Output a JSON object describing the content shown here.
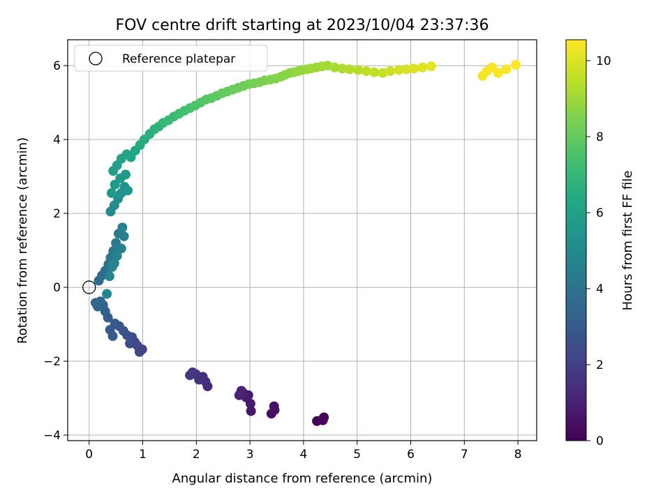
{
  "chart_data": {
    "type": "scatter",
    "title": "FOV centre drift starting at 2023/10/04 23:37:36",
    "xlabel": "Angular distance from reference (arcmin)",
    "ylabel": "Rotation from reference (arcmin)",
    "xlim": [
      -0.4,
      8.35
    ],
    "ylim": [
      -4.15,
      6.7
    ],
    "xticks": [
      "0",
      "1",
      "2",
      "3",
      "4",
      "5",
      "6",
      "7",
      "8"
    ],
    "yticks": [
      "−4",
      "−2",
      "0",
      "2",
      "4",
      "6"
    ],
    "grid": true,
    "legend": {
      "label": "Reference platepar",
      "placement": "top-left"
    },
    "reference_point": {
      "x": 0,
      "y": 0
    },
    "colorbar": {
      "label": "Hours from first FF file",
      "range": [
        0,
        10.55
      ],
      "ticks": [
        "0",
        "2",
        "4",
        "6",
        "8",
        "10"
      ],
      "colormap": "viridis"
    },
    "series": [
      {
        "x": [
          4.25,
          4.35,
          4.38,
          4.36,
          3.4,
          3.46,
          3.45,
          3.02,
          3.01,
          2.97,
          2.93,
          2.87,
          2.84,
          2.8,
          2.21,
          2.17,
          2.12,
          2.05,
          1.99,
          1.93,
          1.88,
          0.99,
          0.94,
          0.9,
          0.85,
          0.8,
          0.76,
          0.71,
          0.64,
          0.56,
          0.48,
          0.44,
          0.39,
          0.35,
          0.3,
          0.26,
          0.21,
          0.16,
          0.12,
          0.18,
          0.24,
          0.3,
          0.36,
          0.4,
          0.45,
          0.5,
          0.55,
          0.62,
          0.65,
          0.6,
          0.52,
          0.47,
          0.43,
          0.38,
          0.33,
          0.4,
          0.47,
          0.54,
          0.6,
          0.66,
          0.72,
          0.68,
          0.58,
          0.48,
          0.42,
          0.45,
          0.52,
          0.6,
          0.7,
          0.78,
          0.86,
          0.95,
          1.03,
          1.13,
          1.22,
          1.3,
          1.38,
          1.48,
          1.58,
          1.68,
          1.78,
          1.88,
          1.98,
          2.08,
          2.18,
          2.28,
          2.38,
          2.48,
          2.58,
          2.68,
          2.78,
          2.88,
          2.98,
          3.08,
          3.18,
          3.28,
          3.38,
          3.48,
          3.58,
          3.66,
          3.74,
          3.82,
          3.9,
          3.98,
          4.06,
          4.14,
          4.24,
          4.34,
          4.45,
          4.58,
          4.72,
          4.86,
          5.02,
          5.17,
          5.32,
          5.48,
          5.62,
          5.78,
          5.92,
          6.06,
          6.22,
          6.38,
          7.34,
          7.42,
          7.52,
          7.63,
          7.78,
          7.96
        ],
        "y": [
          -3.62,
          -3.58,
          -3.52,
          -3.6,
          -3.42,
          -3.32,
          -3.22,
          -3.35,
          -3.15,
          -2.92,
          -2.98,
          -2.85,
          -2.8,
          -2.92,
          -2.68,
          -2.55,
          -2.42,
          -2.5,
          -2.35,
          -2.3,
          -2.38,
          -1.68,
          -1.75,
          -1.58,
          -1.48,
          -1.35,
          -1.52,
          -1.3,
          -1.18,
          -1.05,
          -0.98,
          -1.32,
          -1.15,
          -0.82,
          -0.65,
          -0.48,
          -0.38,
          -0.52,
          -0.42,
          0.18,
          0.32,
          0.45,
          0.62,
          0.8,
          0.98,
          1.2,
          1.45,
          1.62,
          1.38,
          1.05,
          0.85,
          0.65,
          0.55,
          0.3,
          -0.18,
          2.05,
          2.22,
          2.4,
          2.55,
          2.72,
          2.62,
          3.05,
          2.95,
          2.78,
          2.55,
          3.15,
          3.3,
          3.48,
          3.6,
          3.52,
          3.7,
          3.85,
          4.0,
          4.15,
          4.28,
          4.35,
          4.45,
          4.52,
          4.62,
          4.7,
          4.78,
          4.85,
          4.92,
          5.0,
          5.08,
          5.12,
          5.18,
          5.25,
          5.3,
          5.35,
          5.4,
          5.45,
          5.5,
          5.52,
          5.55,
          5.6,
          5.62,
          5.65,
          5.7,
          5.75,
          5.8,
          5.82,
          5.85,
          5.88,
          5.9,
          5.92,
          5.95,
          5.98,
          6.0,
          5.95,
          5.92,
          5.9,
          5.88,
          5.85,
          5.82,
          5.8,
          5.85,
          5.88,
          5.9,
          5.92,
          5.95,
          5.98,
          5.72,
          5.85,
          5.95,
          5.8,
          5.9,
          6.02
        ],
        "hours": [
          0.05,
          0.08,
          0.12,
          0.15,
          0.35,
          0.42,
          0.48,
          0.62,
          0.7,
          0.78,
          0.85,
          0.92,
          0.98,
          1.05,
          1.3,
          1.38,
          1.45,
          1.52,
          1.58,
          1.65,
          1.72,
          2.1,
          2.18,
          2.25,
          2.32,
          2.4,
          2.48,
          2.55,
          2.65,
          2.75,
          2.85,
          2.92,
          3.0,
          3.08,
          3.18,
          3.28,
          3.38,
          3.48,
          3.55,
          3.7,
          3.8,
          3.9,
          4.0,
          4.1,
          4.2,
          4.3,
          4.4,
          4.5,
          4.55,
          4.6,
          4.65,
          4.7,
          4.75,
          4.8,
          4.85,
          5.0,
          5.1,
          5.2,
          5.3,
          5.4,
          5.5,
          5.6,
          5.65,
          5.7,
          5.75,
          5.85,
          5.95,
          6.05,
          6.15,
          6.25,
          6.35,
          6.45,
          6.55,
          6.65,
          6.75,
          6.85,
          6.95,
          7.05,
          7.15,
          7.25,
          7.35,
          7.45,
          7.55,
          7.65,
          7.75,
          7.82,
          7.88,
          7.95,
          8.02,
          8.08,
          8.14,
          8.2,
          8.26,
          8.32,
          8.38,
          8.44,
          8.5,
          8.55,
          8.6,
          8.65,
          8.7,
          8.75,
          8.8,
          8.85,
          8.9,
          8.95,
          9.0,
          9.05,
          9.1,
          9.18,
          9.26,
          9.34,
          9.42,
          9.5,
          9.58,
          9.66,
          9.74,
          9.82,
          9.9,
          9.98,
          10.06,
          10.14,
          10.35,
          10.4,
          10.45,
          10.48,
          10.52,
          10.55
        ]
      }
    ]
  }
}
